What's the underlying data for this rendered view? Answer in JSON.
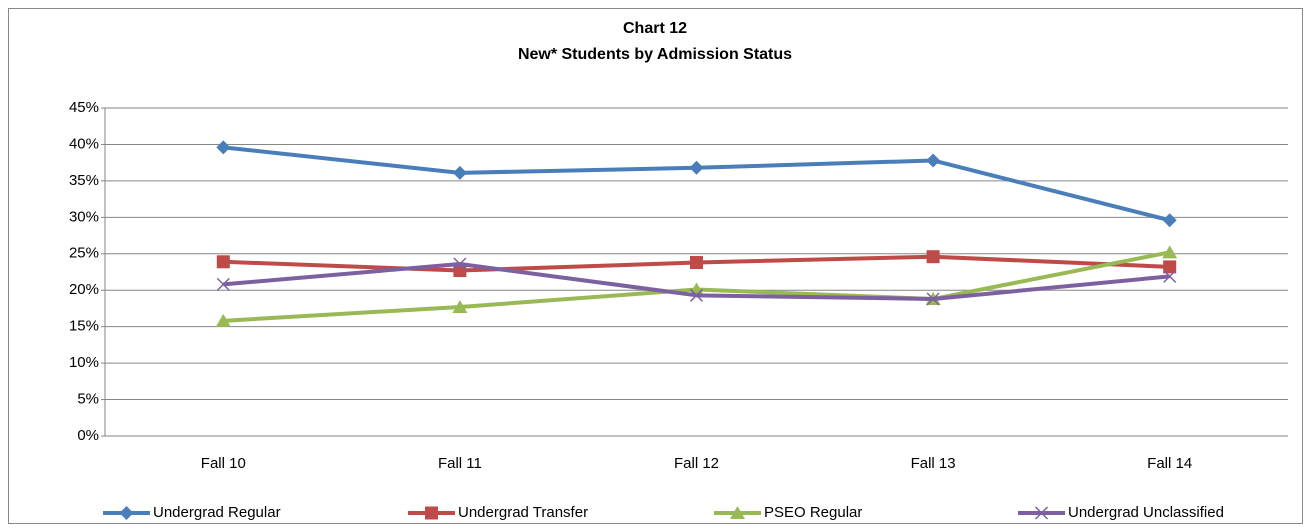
{
  "chart_data": {
    "type": "line",
    "title": "Chart 12",
    "subtitle": "New* Students by Admission Status",
    "categories": [
      "Fall 10",
      "Fall 11",
      "Fall 12",
      "Fall 13",
      "Fall 14"
    ],
    "series": [
      {
        "name": "Undergrad Regular",
        "color": "#4a7ebb",
        "marker": "diamond",
        "values": [
          39.6,
          36.1,
          36.8,
          37.8,
          29.6
        ]
      },
      {
        "name": "Undergrad Transfer",
        "color": "#be4b48",
        "marker": "square",
        "values": [
          23.9,
          22.7,
          23.8,
          24.6,
          23.2
        ]
      },
      {
        "name": "PSEO Regular",
        "color": "#98b954",
        "marker": "triangle",
        "values": [
          15.8,
          17.7,
          20.1,
          18.8,
          25.2
        ]
      },
      {
        "name": "Undergrad Unclassified",
        "color": "#7d60a0",
        "marker": "x",
        "values": [
          20.8,
          23.6,
          19.3,
          18.8,
          21.9
        ]
      }
    ],
    "ylim": [
      0,
      45
    ],
    "yticks": [
      {
        "value": 0,
        "label": "0%"
      },
      {
        "value": 5,
        "label": "5%"
      },
      {
        "value": 10,
        "label": "10%"
      },
      {
        "value": 15,
        "label": "15%"
      },
      {
        "value": 20,
        "label": "20%"
      },
      {
        "value": 25,
        "label": "25%"
      },
      {
        "value": 30,
        "label": "30%"
      },
      {
        "value": 35,
        "label": "35%"
      },
      {
        "value": 40,
        "label": "40%"
      },
      {
        "value": 45,
        "label": "45%"
      }
    ],
    "grid": true,
    "legend": "bottom"
  }
}
